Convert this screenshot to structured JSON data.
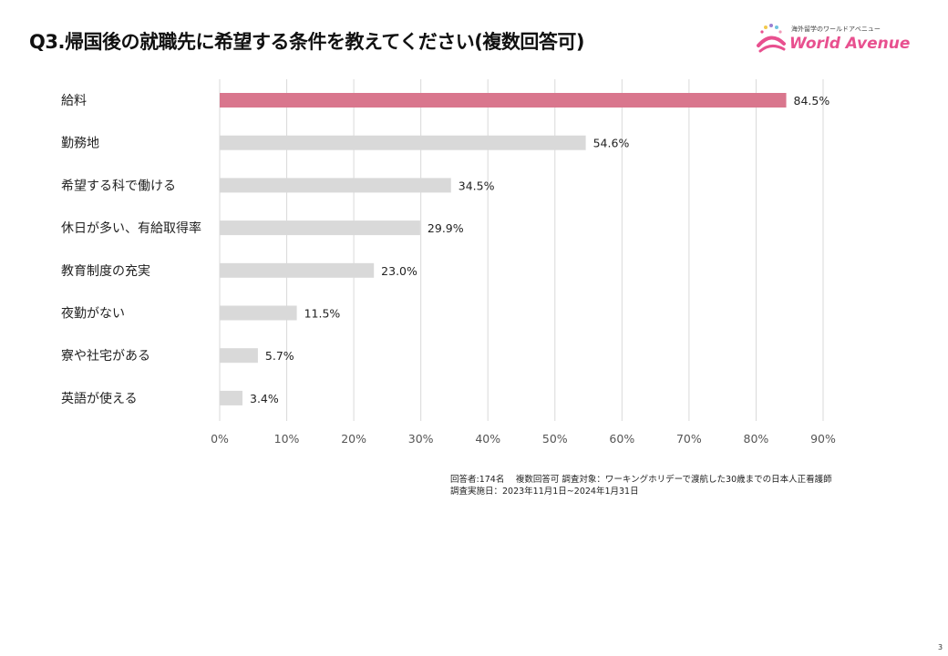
{
  "title": "Q3.帰国後の就職先に希望する条件を教えてください(複数回答可)",
  "logo": {
    "sub": "海外留学のワールドアベニュー",
    "main": "World Avenue",
    "icon": "world-avenue-logo-icon"
  },
  "chart_data": {
    "type": "bar",
    "orientation": "horizontal",
    "categories": [
      "給料",
      "勤務地",
      "希望する科で働ける",
      "休日が多い、有給取得率",
      "教育制度の充実",
      "夜勤がない",
      "寮や社宅がある",
      "英語が使える"
    ],
    "values": [
      84.5,
      54.6,
      34.5,
      29.9,
      23.0,
      11.5,
      5.7,
      3.4
    ],
    "value_labels": [
      "84.5%",
      "54.6%",
      "34.5%",
      "29.9%",
      "23.0%",
      "11.5%",
      "5.7%",
      "3.4%"
    ],
    "xlim": [
      0,
      90
    ],
    "xticks": [
      "0%",
      "10%",
      "20%",
      "30%",
      "40%",
      "50%",
      "60%",
      "70%",
      "80%",
      "90%"
    ],
    "highlight_index": 0,
    "colors": {
      "highlight": "#d9768d",
      "bar": "#d9d9d9",
      "grid": "#d9d9d9",
      "label": "#222222",
      "tick": "#555555"
    },
    "grid": true
  },
  "notes": {
    "line1": "回答者:174名　 複数回答可 調査対象：ワーキングホリデーで渡航した30歳までの日本人正看護師",
    "line2": "調査実施日：2023年11月1日~2024年1月31日"
  },
  "page_number": "3"
}
